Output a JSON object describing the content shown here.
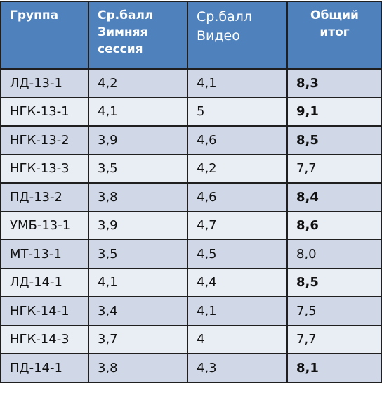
{
  "table": {
    "header": [
      "Группа",
      "Ср.балл\nЗимняя\nсессия",
      "Ср.балл\nВидео",
      "Общий\nитог"
    ],
    "rows": [
      [
        "ЛД-13-1",
        "4,2",
        "4,1",
        "8,3"
      ],
      [
        "НГК-13-1",
        "4,1",
        "5",
        "9,1"
      ],
      [
        "НГК-13-2",
        "3,9",
        "4,6",
        "8,5"
      ],
      [
        "НГК-13-3",
        "3,5",
        "4,2",
        "7,7"
      ],
      [
        "ПД-13-2",
        "3,8",
        "4,6",
        "8,4"
      ],
      [
        "УМБ-13-1",
        "3,9",
        "4,7",
        "8,6"
      ],
      [
        "МТ-13-1",
        "3,5",
        "4,5",
        "8,0"
      ],
      [
        "ЛД-14-1",
        "4,1",
        "4,4",
        "8,5"
      ],
      [
        "НГК-14-1",
        "3,4",
        "4,1",
        "7,5"
      ],
      [
        "НГК-14-3",
        "3,7",
        "4",
        "7,7"
      ],
      [
        "ПД-14-1",
        "3,8",
        "4,3",
        "8,1"
      ]
    ],
    "bold_totals": [
      true,
      true,
      true,
      false,
      true,
      true,
      false,
      true,
      false,
      false,
      true
    ]
  }
}
